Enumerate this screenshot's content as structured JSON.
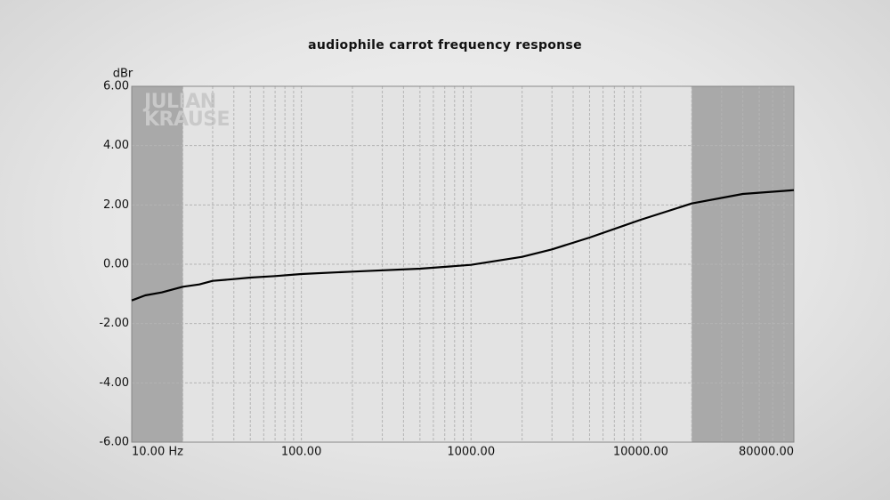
{
  "chart_data": {
    "type": "line",
    "title": "audiophile carrot frequency response",
    "y_label": "dBr",
    "watermark": [
      "JULIAN",
      "KRAUSE"
    ],
    "x_scale": "log",
    "xlim": [
      10,
      80000
    ],
    "ylim": [
      -6,
      6
    ],
    "xticks": [
      {
        "value": 10,
        "label": "10.00 Hz"
      },
      {
        "value": 100,
        "label": "100.00"
      },
      {
        "value": 1000,
        "label": "1000.00"
      },
      {
        "value": 10000,
        "label": "10000.00"
      },
      {
        "value": 80000,
        "label": "80000.00"
      }
    ],
    "yticks": [
      {
        "value": 6,
        "label": "6.00"
      },
      {
        "value": 4,
        "label": "4.00"
      },
      {
        "value": 2,
        "label": "2.00"
      },
      {
        "value": 0,
        "label": "0.00"
      },
      {
        "value": -2,
        "label": "-2.00"
      },
      {
        "value": -4,
        "label": "-4.00"
      },
      {
        "value": -6,
        "label": "-6.00"
      }
    ],
    "grid": true,
    "shaded_ranges": [
      [
        10,
        20
      ],
      [
        20000,
        80000
      ]
    ],
    "x": [
      10,
      12,
      15,
      20,
      25,
      30,
      40,
      50,
      70,
      100,
      200,
      500,
      1000,
      2000,
      3000,
      5000,
      10000,
      20000,
      40000,
      80000
    ],
    "series": [
      {
        "color": "#000000",
        "values": [
          -1.22,
          -1.05,
          -0.95,
          -0.76,
          -0.68,
          -0.56,
          -0.5,
          -0.45,
          -0.4,
          -0.33,
          -0.25,
          -0.15,
          -0.02,
          0.25,
          0.5,
          0.9,
          1.5,
          2.05,
          2.37,
          2.5
        ]
      }
    ]
  }
}
